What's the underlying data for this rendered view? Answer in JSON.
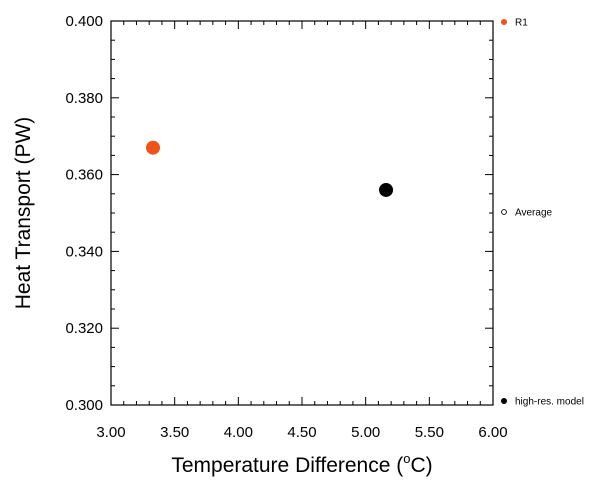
{
  "chart_data": {
    "type": "scatter",
    "xlabel": "Temperature Difference (",
    "xlabel_sup": "o",
    "xlabel_unit": "C)",
    "ylabel": "Heat Transport (PW)",
    "xlim": [
      3.0,
      6.0
    ],
    "ylim": [
      0.3,
      0.4
    ],
    "x_ticks": [
      "3.00",
      "3.50",
      "4.00",
      "4.50",
      "5.00",
      "5.50",
      "6.00"
    ],
    "y_ticks": [
      "0.300",
      "0.320",
      "0.340",
      "0.360",
      "0.380",
      "0.400"
    ],
    "grid": false,
    "legend_placement": "right",
    "series": [
      {
        "name": "R1",
        "color": "#f0521c",
        "filled": true,
        "points": [
          {
            "x": 3.33,
            "y": 0.367
          }
        ]
      },
      {
        "name": "Average",
        "color": "#000000",
        "filled": false,
        "points": []
      },
      {
        "name": "high-res. model",
        "color": "#000000",
        "filled": true,
        "points": [
          {
            "x": 5.16,
            "y": 0.356
          }
        ]
      }
    ]
  }
}
